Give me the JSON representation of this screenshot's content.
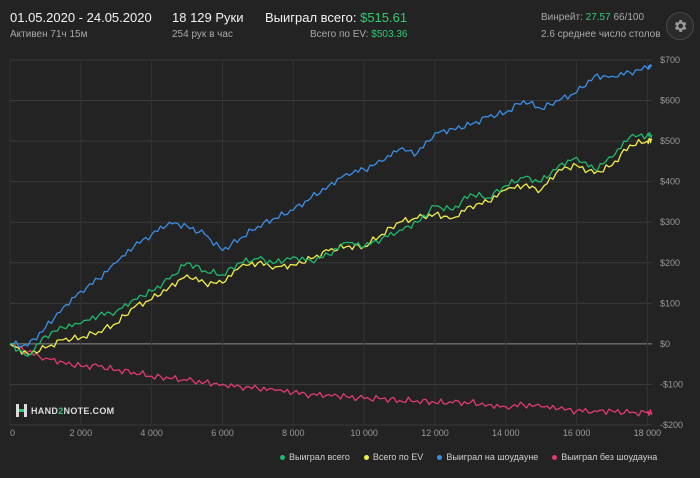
{
  "header": {
    "date_range": "01.05.2020 - 24.05.2020",
    "active_time": "Активен 71ч 15м",
    "hands": "18 129 Руки",
    "hands_per_hour": "254 рук в час",
    "won_label": "Выиграл всего:",
    "won_value": "$515.61",
    "ev_label": "Всего по EV:",
    "ev_value": "$503.36",
    "winrate_label": "Винрейт:",
    "winrate_value": "27.57",
    "winrate_sample": "66/100",
    "avg_tables": "2.6 среднее число столов"
  },
  "icons": {
    "settings": "gear-icon",
    "logo": "hand2note-logo"
  },
  "logo": {
    "text_a": "HAND",
    "text_b": "2",
    "text_c": "NOTE.COM"
  },
  "colors": {
    "background": "#232323",
    "accent_green": "#2fcc74",
    "won": "#1fb86a",
    "ev": "#f2ee49",
    "showdown": "#3a8ee6",
    "nonshowdown": "#e03a74"
  },
  "chart_data": {
    "type": "line",
    "xlim": [
      0,
      18129
    ],
    "ylim": [
      -200,
      700
    ],
    "x_ticks": [
      0,
      2000,
      4000,
      6000,
      8000,
      10000,
      12000,
      14000,
      16000,
      18000
    ],
    "x_tick_labels": [
      "0",
      "2 000",
      "4 000",
      "6 000",
      "8 000",
      "10 000",
      "12 000",
      "14 000",
      "16 000",
      "18 000"
    ],
    "y_ticks": [
      700,
      600,
      500,
      400,
      300,
      200,
      100,
      0,
      -100,
      -200
    ],
    "y_tick_labels": [
      "$700",
      "$600",
      "$500",
      "$400",
      "$300",
      "$200",
      "$100",
      "$0",
      "-$100",
      "-$200"
    ],
    "grid": true,
    "legend_position": "bottom-right",
    "x": [
      0,
      500,
      1000,
      1500,
      2000,
      2500,
      3000,
      3500,
      4000,
      4500,
      5000,
      5500,
      6000,
      6500,
      7000,
      7500,
      8000,
      8500,
      9000,
      9500,
      10000,
      10500,
      11000,
      11500,
      12000,
      12500,
      13000,
      13500,
      14000,
      14500,
      15000,
      15500,
      16000,
      16500,
      17000,
      17500,
      18000,
      18129
    ],
    "series": [
      {
        "name": "Выиграл всего",
        "color": "#1fb86a",
        "values": [
          0,
          -30,
          20,
          40,
          50,
          70,
          80,
          110,
          130,
          160,
          200,
          180,
          170,
          200,
          210,
          200,
          215,
          205,
          220,
          250,
          240,
          260,
          280,
          300,
          340,
          330,
          370,
          360,
          390,
          410,
          400,
          440,
          460,
          430,
          460,
          510,
          515,
          515.61
        ]
      },
      {
        "name": "Всего по EV",
        "color": "#f2ee49",
        "values": [
          0,
          -25,
          -10,
          10,
          15,
          30,
          50,
          90,
          110,
          140,
          170,
          150,
          150,
          190,
          200,
          190,
          195,
          210,
          230,
          240,
          240,
          270,
          300,
          310,
          320,
          310,
          340,
          350,
          380,
          390,
          380,
          430,
          440,
          420,
          440,
          490,
          500,
          503.36
        ]
      },
      {
        "name": "Выиграл на шоудауне",
        "color": "#3a8ee6",
        "values": [
          0,
          -5,
          40,
          90,
          130,
          160,
          200,
          240,
          270,
          300,
          290,
          270,
          230,
          260,
          290,
          310,
          330,
          360,
          390,
          420,
          430,
          450,
          480,
          470,
          520,
          530,
          540,
          560,
          570,
          600,
          580,
          600,
          620,
          660,
          660,
          670,
          680,
          685
        ]
      },
      {
        "name": "Выиграл без шоудауна",
        "color": "#e03a74",
        "values": [
          0,
          -20,
          -35,
          -45,
          -55,
          -55,
          -65,
          -70,
          -80,
          -85,
          -90,
          -95,
          -100,
          -105,
          -110,
          -115,
          -120,
          -125,
          -125,
          -130,
          -135,
          -135,
          -140,
          -140,
          -145,
          -145,
          -145,
          -150,
          -155,
          -150,
          -155,
          -160,
          -165,
          -165,
          -165,
          -170,
          -170,
          -170
        ]
      }
    ]
  }
}
